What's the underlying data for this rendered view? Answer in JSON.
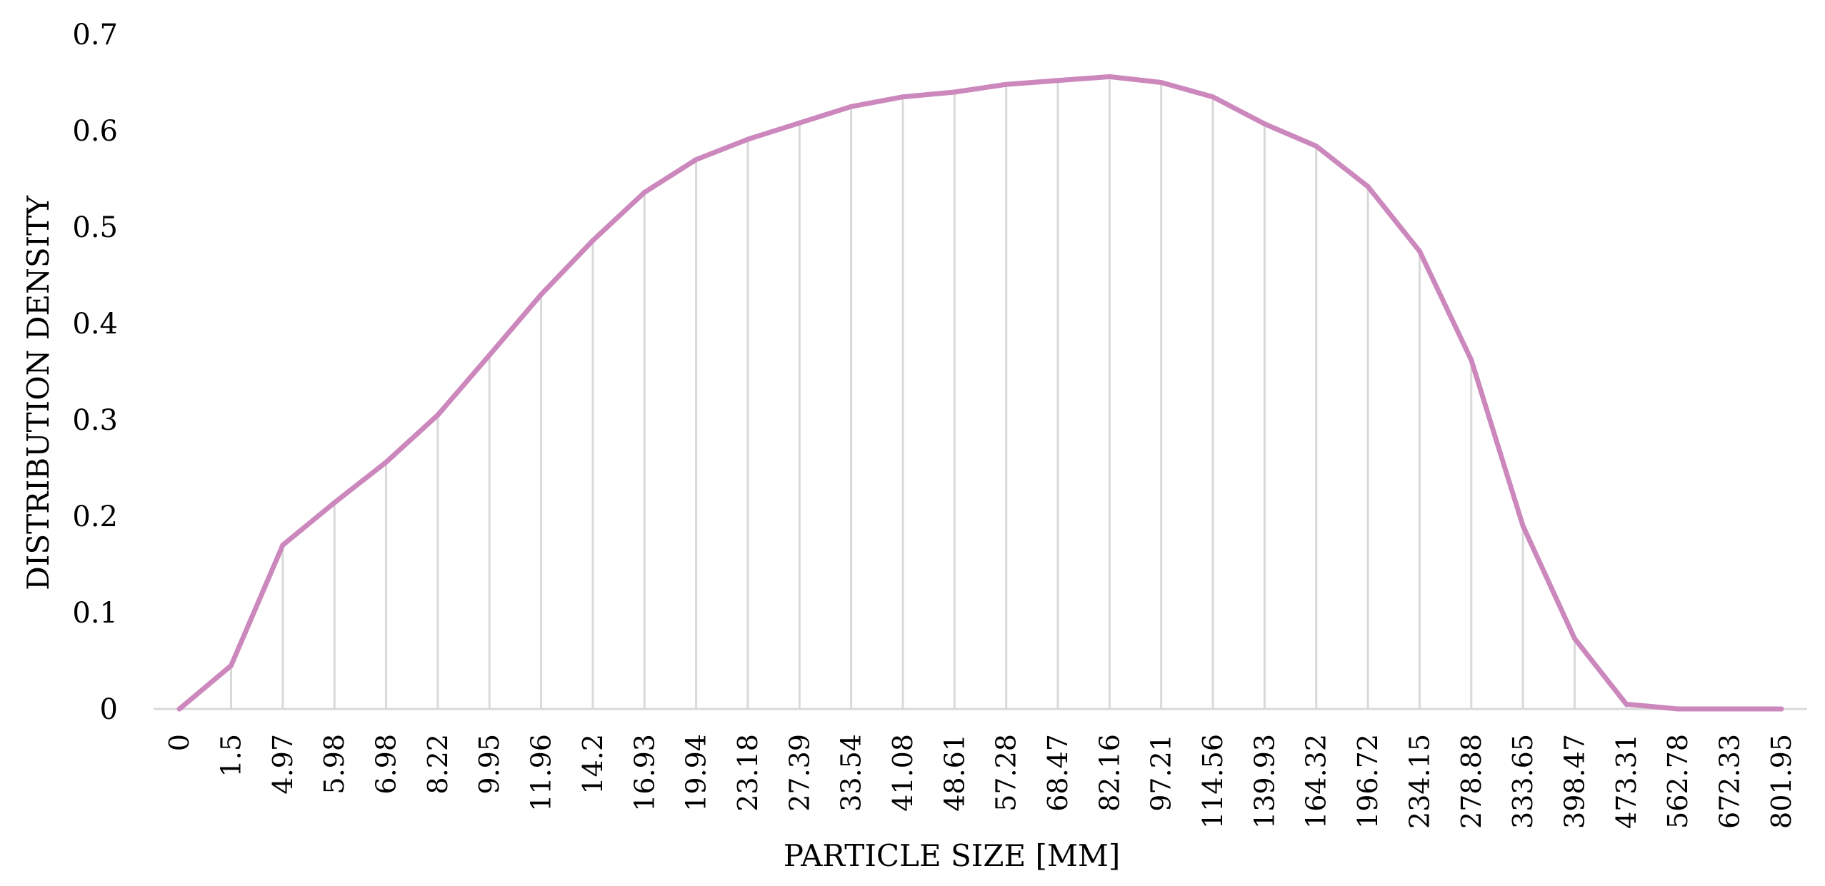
{
  "colors": {
    "series": "#cc88bd",
    "grid": "#d9d9d9",
    "text": "#000000"
  },
  "chart_data": {
    "type": "line",
    "title": "",
    "xlabel": "PARTICLE SIZE [MM]",
    "ylabel": "DISTRIBUTION DENSITY",
    "ylim": [
      0,
      0.7
    ],
    "yticks": [
      "0",
      "0.1",
      "0.2",
      "0.3",
      "0.4",
      "0.5",
      "0.6",
      "0.7"
    ],
    "categories": [
      "0",
      "1.5",
      "4.97",
      "5.98",
      "6.98",
      "8.22",
      "9.95",
      "11.96",
      "14.2",
      "16.93",
      "19.94",
      "23.18",
      "27.39",
      "33.54",
      "41.08",
      "48.61",
      "57.28",
      "68.47",
      "82.16",
      "97.21",
      "114.56",
      "139.93",
      "164.32",
      "196.72",
      "234.15",
      "278.88",
      "333.65",
      "398.47",
      "473.31",
      "562.78",
      "672.33",
      "801.95"
    ],
    "series": [
      {
        "values": [
          0,
          0.045,
          0.17,
          0.214,
          0.256,
          0.305,
          0.367,
          0.43,
          0.486,
          0.536,
          0.57,
          0.591,
          0.608,
          0.625,
          0.635,
          0.64,
          0.648,
          0.652,
          0.656,
          0.65,
          0.635,
          0.607,
          0.584,
          0.542,
          0.475,
          0.362,
          0.19,
          0.073,
          0.005,
          0,
          0,
          0
        ]
      }
    ],
    "vertical_gridlines": true,
    "horizontal_gridlines": false,
    "legend": "none"
  }
}
